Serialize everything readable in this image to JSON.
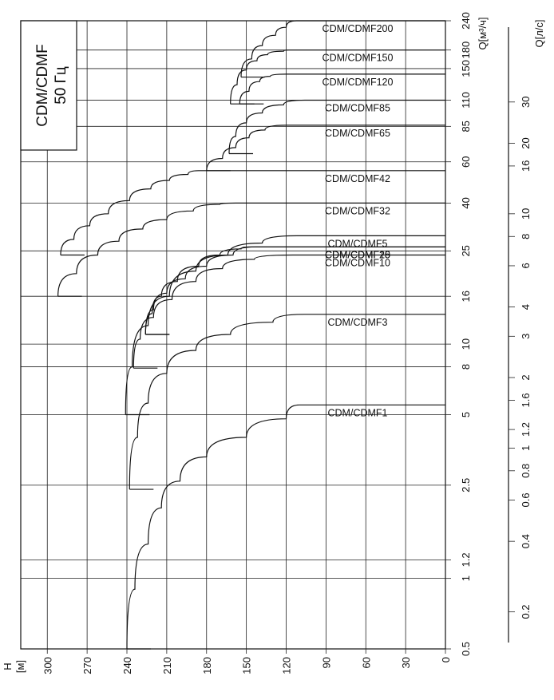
{
  "chart_data": {
    "type": "line",
    "title": "CDM/CDMF",
    "subtitle": "50 Гц",
    "xlabel": "H",
    "xunit": "[м]",
    "ylabel": "Q[м³/ч]",
    "y2label": "Q[л/с]",
    "x_ticks": [
      300,
      270,
      240,
      210,
      180,
      150,
      120,
      90,
      60,
      30,
      0
    ],
    "xlim": [
      0,
      320
    ],
    "ylim": [
      0.5,
      240
    ],
    "y_scale": "log",
    "y_ticks": [
      "0.5",
      "1",
      "1.2",
      "2.5",
      "5",
      "8",
      "10",
      "16",
      "25",
      "40",
      "60",
      "85",
      "110",
      "150",
      "180",
      "240"
    ],
    "y2_ticks": [
      "0.2",
      "0.4",
      "0.6",
      "0.8",
      "1",
      "1.2",
      "1.6",
      "2",
      "3",
      "4",
      "6",
      "8",
      "10",
      "16",
      "20",
      "30"
    ],
    "grid": true,
    "series": [
      {
        "name": "CDM/CDMF1",
        "points": [
          [
            240,
            0.5
          ],
          [
            234,
            0.9
          ],
          [
            224,
            1.4
          ],
          [
            214,
            2
          ],
          [
            200,
            2.6
          ],
          [
            180,
            3.3
          ],
          [
            150,
            4
          ],
          [
            120,
            4.8
          ],
          [
            110,
            5.5
          ]
        ]
      },
      {
        "name": "CDM/CDMF3",
        "points": [
          [
            238,
            2.4
          ],
          [
            232,
            4
          ],
          [
            224,
            5.6
          ],
          [
            210,
            7.5
          ],
          [
            188,
            9.4
          ],
          [
            162,
            11
          ],
          [
            130,
            12.4
          ],
          [
            106,
            13.4
          ]
        ]
      },
      {
        "name": "CDM/CDMF5",
        "points": [
          [
            241,
            5
          ],
          [
            236,
            8
          ],
          [
            224,
            12
          ],
          [
            208,
            16
          ],
          [
            188,
            20.5
          ],
          [
            164,
            24
          ],
          [
            138,
            27
          ],
          [
            112,
            29
          ]
        ]
      },
      {
        "name": "CDM/CDMF10",
        "points": [
          [
            235,
            7.9
          ],
          [
            230,
            10.5
          ],
          [
            220,
            13
          ],
          [
            206,
            15.5
          ],
          [
            188,
            18.5
          ],
          [
            168,
            21
          ],
          [
            144,
            23
          ],
          [
            115,
            24
          ]
        ]
      },
      {
        "name": "CDM/CDMF15",
        "points": [
          [
            226,
            11
          ],
          [
            220,
            14
          ],
          [
            210,
            16.5
          ],
          [
            196,
            19
          ],
          [
            180,
            21.5
          ],
          [
            160,
            24
          ],
          [
            142,
            26
          ]
        ]
      },
      {
        "name": "CDM/CDMF20",
        "points": [
          [
            226,
            11
          ],
          [
            221,
            13.5
          ],
          [
            214,
            16
          ],
          [
            202,
            18.5
          ],
          [
            186,
            21.5
          ],
          [
            170,
            24
          ],
          [
            154,
            25.5
          ],
          [
            148,
            26
          ]
        ]
      },
      {
        "name": "CDM/CDMF32",
        "points": [
          [
            292,
            16
          ],
          [
            278,
            20
          ],
          [
            262,
            24
          ],
          [
            246,
            27.5
          ],
          [
            228,
            31
          ],
          [
            210,
            34
          ],
          [
            190,
            37
          ],
          [
            170,
            39.5
          ],
          [
            158,
            40
          ]
        ]
      },
      {
        "name": "CDM/CDMF42",
        "points": [
          [
            290,
            24
          ],
          [
            280,
            28
          ],
          [
            268,
            32
          ],
          [
            254,
            36
          ],
          [
            238,
            41
          ],
          [
            222,
            46
          ],
          [
            208,
            50
          ],
          [
            194,
            53
          ],
          [
            186,
            55
          ]
        ]
      },
      {
        "name": "CDM/CDMF65",
        "points": [
          [
            180,
            55
          ],
          [
            168,
            62
          ],
          [
            158,
            69
          ],
          [
            148,
            76
          ],
          [
            136,
            82
          ],
          [
            120,
            86
          ]
        ]
      },
      {
        "name": "CDM/CDMF85",
        "points": [
          [
            163,
            65
          ],
          [
            158,
            77
          ],
          [
            150,
            88
          ],
          [
            138,
            97
          ],
          [
            122,
            105
          ],
          [
            106,
            110
          ]
        ]
      },
      {
        "name": "CDM/CDMF120",
        "points": [
          [
            155,
            106
          ],
          [
            148,
            120
          ],
          [
            140,
            132
          ],
          [
            132,
            139
          ],
          [
            120,
            142
          ]
        ]
      },
      {
        "name": "CDM/CDMF150",
        "points": [
          [
            162,
            106
          ],
          [
            157,
            128
          ],
          [
            150,
            148
          ],
          [
            142,
            162
          ],
          [
            134,
            172
          ],
          [
            122,
            178
          ],
          [
            118,
            180
          ]
        ]
      },
      {
        "name": "CDM/CDMF200",
        "points": [
          [
            154,
            138
          ],
          [
            146,
            165
          ],
          [
            138,
            188
          ],
          [
            128,
            208
          ],
          [
            120,
            225
          ],
          [
            112,
            240
          ]
        ]
      }
    ]
  }
}
